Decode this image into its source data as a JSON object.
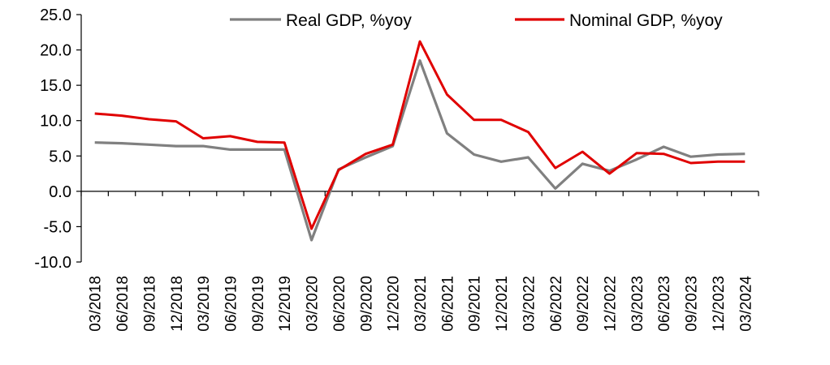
{
  "chart_data": {
    "type": "line",
    "title": "",
    "xlabel": "",
    "ylabel": "",
    "ylim": [
      -10,
      25
    ],
    "yticks": [
      "25.0",
      "20.0",
      "15.0",
      "10.0",
      "5.0",
      "0.0",
      "-5.0",
      "-10.0"
    ],
    "ytick_values": [
      25,
      20,
      15,
      10,
      5,
      0,
      -5,
      -10
    ],
    "grid": false,
    "legend_position": "top",
    "categories": [
      "03/2018",
      "06/2018",
      "09/2018",
      "12/2018",
      "03/2019",
      "06/2019",
      "09/2019",
      "12/2019",
      "03/2020",
      "06/2020",
      "09/2020",
      "12/2020",
      "03/2021",
      "06/2021",
      "09/2021",
      "12/2021",
      "03/2022",
      "06/2022",
      "09/2022",
      "12/2022",
      "03/2023",
      "06/2023",
      "09/2023",
      "12/2023",
      "03/2024"
    ],
    "series": [
      {
        "name": "Real GDP, %yoy",
        "color": "#808080",
        "values": [
          6.9,
          6.8,
          6.6,
          6.4,
          6.4,
          5.9,
          5.9,
          5.9,
          -6.9,
          3.1,
          4.8,
          6.4,
          18.5,
          8.2,
          5.2,
          4.2,
          4.8,
          0.4,
          3.9,
          2.9,
          4.5,
          6.3,
          4.9,
          5.2,
          5.3
        ]
      },
      {
        "name": "Nominal GDP, %yoy",
        "color": "#e00000",
        "values": [
          11.0,
          10.7,
          10.2,
          9.9,
          7.5,
          7.8,
          7.0,
          6.9,
          -5.3,
          3.0,
          5.3,
          6.6,
          21.2,
          13.7,
          10.1,
          10.1,
          8.4,
          3.3,
          5.6,
          2.5,
          5.4,
          5.3,
          4.0,
          4.2,
          4.2
        ]
      }
    ]
  }
}
